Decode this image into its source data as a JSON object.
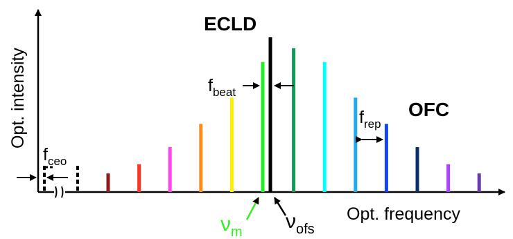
{
  "labels": {
    "y_axis": "Opt. intensity",
    "x_axis": "Opt. frequency",
    "laser": "ECLD",
    "comb": "OFC",
    "f_beat": {
      "main": "f",
      "sub": "beat"
    },
    "f_rep": {
      "main": "f",
      "sub": "rep"
    },
    "f_ceo": {
      "main": "f",
      "sub": "ceo"
    },
    "nu_m": {
      "main": "ν",
      "sub": "m"
    },
    "nu_ofs": {
      "main": "ν",
      "sub": "ofs"
    }
  },
  "colors": {
    "axis": "#000000",
    "ecld_line": "#000000",
    "nu_m_label": "#33ee22",
    "comb_lines": [
      "#8b1a1a",
      "#ff3322",
      "#ff44ee",
      "#ff8c1a",
      "#ffee00",
      "#22ee22",
      "#119955",
      "#00ffff",
      "#22aaee",
      "#1144ee",
      "#0b2e6e",
      "#aa44ff",
      "#6a3aaa"
    ]
  },
  "comb_relative_intensity": [
    0.12,
    0.18,
    0.29,
    0.44,
    0.61,
    0.84,
    0.93,
    0.84,
    0.61,
    0.44,
    0.29,
    0.18,
    0.12
  ],
  "ecld_relative_intensity": 1.0
}
